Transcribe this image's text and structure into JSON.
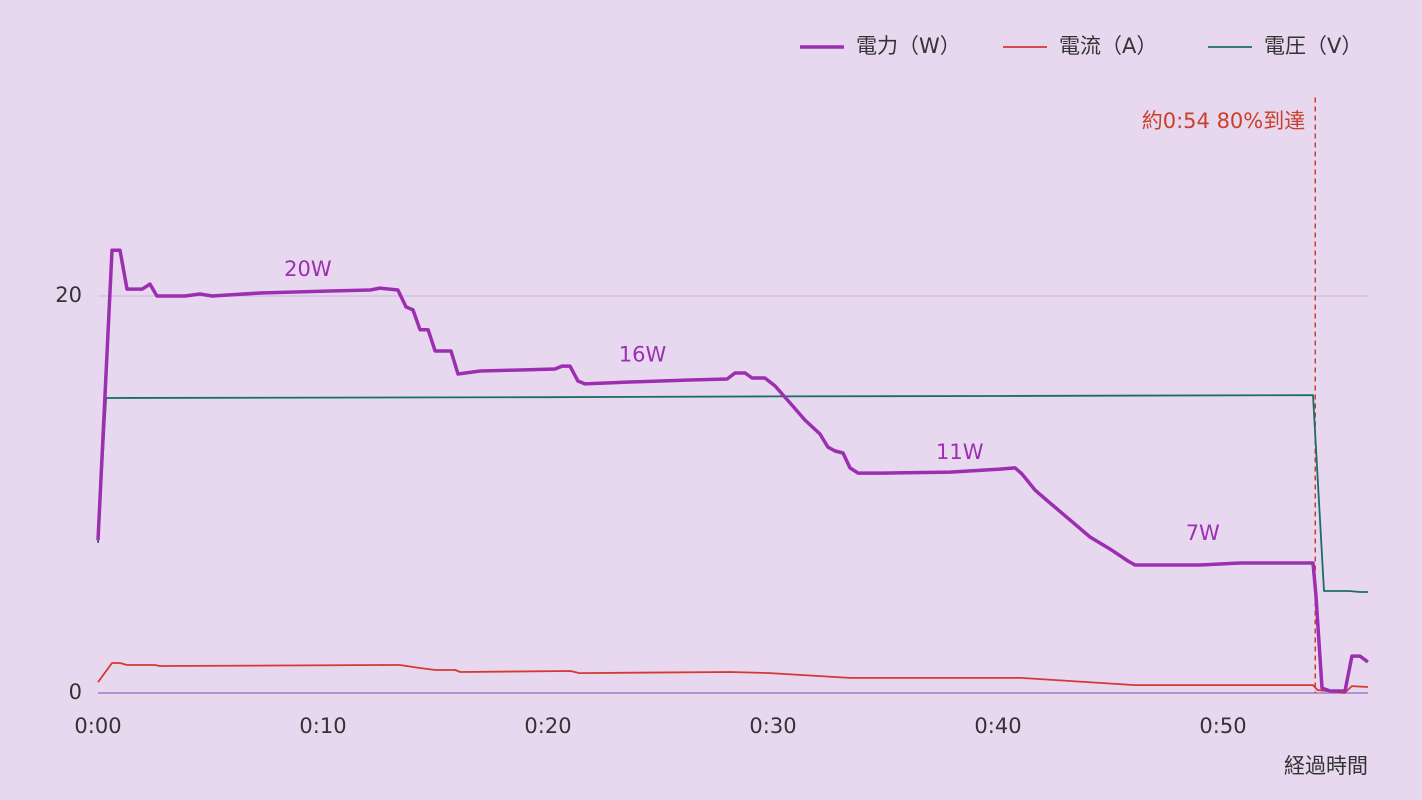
{
  "chart_data": {
    "type": "line",
    "xlabel": "経過時間",
    "xlim": [
      0,
      56.4
    ],
    "xticks": [
      {
        "value": 0,
        "label": "0:00"
      },
      {
        "value": 10,
        "label": "0:10"
      },
      {
        "value": 20,
        "label": "0:20"
      },
      {
        "value": 30,
        "label": "0:30"
      },
      {
        "value": 40,
        "label": "0:40"
      },
      {
        "value": 50,
        "label": "0:50"
      }
    ],
    "ylim": [
      0,
      30
    ],
    "yticks": [
      0,
      20
    ],
    "grid": true,
    "legend": "top-right",
    "series": [
      {
        "name": "電力（W）",
        "color": "#9b2fb0",
        "x": [
          0,
          0.62,
          0.98,
          1.29,
          1.96,
          2.31,
          2.62,
          3.87,
          4.53,
          5.07,
          7.2,
          10.3,
          12.1,
          12.53,
          13.33,
          13.69,
          14.0,
          14.31,
          14.67,
          14.98,
          15.69,
          16.0,
          16.98,
          18.76,
          20.31,
          20.62,
          20.98,
          21.33,
          21.64,
          23.64,
          26.31,
          27.96,
          28.31,
          28.76,
          29.07,
          29.64,
          30.09,
          30.76,
          31.42,
          32.09,
          32.44,
          32.76,
          33.11,
          33.42,
          33.78,
          34.76,
          37.87,
          40.09,
          40.76,
          41.07,
          41.64,
          42.31,
          43.2,
          44.09,
          44.98,
          45.78,
          46.09,
          48.98,
          50.76,
          54.0,
          54.13,
          54.4,
          54.76,
          55.42,
          55.73,
          56.09,
          56.44
        ],
        "values": [
          7.7,
          22.3,
          22.3,
          20.35,
          20.35,
          20.6,
          20.0,
          20.0,
          20.1,
          20.0,
          20.15,
          20.25,
          20.3,
          20.4,
          20.3,
          19.45,
          19.3,
          18.3,
          18.3,
          17.23,
          17.23,
          16.07,
          16.22,
          16.27,
          16.32,
          16.47,
          16.47,
          15.72,
          15.57,
          15.67,
          15.77,
          15.82,
          16.12,
          16.12,
          15.87,
          15.87,
          15.47,
          14.61,
          13.75,
          13.05,
          12.39,
          12.19,
          12.09,
          11.34,
          11.08,
          11.08,
          11.13,
          11.28,
          11.34,
          11.03,
          10.23,
          9.57,
          8.72,
          7.86,
          7.25,
          6.65,
          6.45,
          6.45,
          6.55,
          6.55,
          4.94,
          0.25,
          0.1,
          0.1,
          1.86,
          1.86,
          1.56
        ]
      },
      {
        "name": "電流（A）",
        "color": "#d43a2f",
        "x": [
          0,
          0.62,
          0.98,
          1.29,
          2.53,
          2.75,
          13.0,
          13.42,
          14.3,
          15.0,
          15.87,
          16.1,
          21.0,
          21.4,
          28.1,
          29.87,
          33.4,
          41.0,
          46.1,
          54.0,
          54.2,
          55.4,
          55.73,
          56.44
        ],
        "values": [
          0.55,
          1.51,
          1.51,
          1.41,
          1.41,
          1.36,
          1.41,
          1.41,
          1.26,
          1.16,
          1.16,
          1.06,
          1.11,
          1.0,
          1.06,
          1.0,
          0.76,
          0.76,
          0.4,
          0.4,
          0.15,
          0,
          0.35,
          0.3
        ]
      },
      {
        "name": "電圧（V）",
        "color": "#1a6e66",
        "x": [
          0,
          0.36,
          10.0,
          20.0,
          30.0,
          40.0,
          54.0,
          54.49,
          55.6,
          56.09,
          56.44
        ],
        "values": [
          7.56,
          14.86,
          14.88,
          14.9,
          14.94,
          14.96,
          15.01,
          5.14,
          5.14,
          5.09,
          5.09
        ]
      }
    ],
    "annotations": [
      {
        "text": "20W",
        "x": 9.33,
        "y": 21.3
      },
      {
        "text": "16W",
        "x": 24.2,
        "y": 17.0
      },
      {
        "text": "11W",
        "x": 38.3,
        "y": 12.1
      },
      {
        "text": "7W",
        "x": 49.1,
        "y": 8.0
      }
    ],
    "marker": {
      "text": "約0:54 80%到達",
      "x": 54.1
    }
  }
}
